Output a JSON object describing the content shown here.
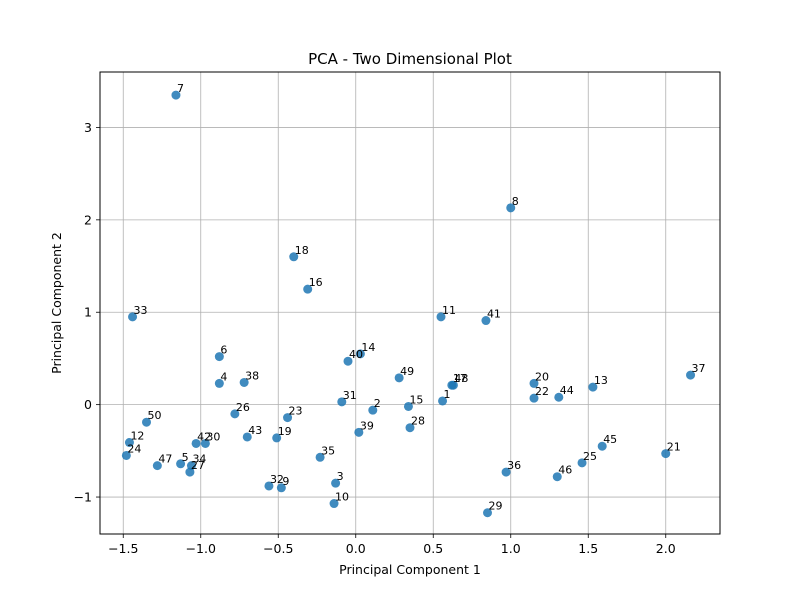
{
  "chart_data": {
    "type": "scatter",
    "title": "PCA - Two Dimensional Plot",
    "xlabel": "Principal Component 1",
    "ylabel": "Principal Component 2",
    "xlim": [
      -1.65,
      2.35
    ],
    "ylim": [
      -1.4,
      3.6
    ],
    "xticks": [
      -1.5,
      -1.0,
      -0.5,
      0.0,
      0.5,
      1.0,
      1.5,
      2.0
    ],
    "xtick_labels": [
      "−1.5",
      "−1.0",
      "−0.5",
      "0.0",
      "0.5",
      "1.0",
      "1.5",
      "2.0"
    ],
    "yticks": [
      -1,
      0,
      1,
      2,
      3
    ],
    "ytick_labels": [
      "−1",
      "0",
      "1",
      "2",
      "3"
    ],
    "grid": true,
    "marker_color": "#1f77b4",
    "points": [
      {
        "label": "1",
        "x": 0.56,
        "y": 0.04
      },
      {
        "label": "2",
        "x": 0.11,
        "y": -0.06
      },
      {
        "label": "3",
        "x": -0.13,
        "y": -0.85
      },
      {
        "label": "4",
        "x": -0.88,
        "y": 0.23
      },
      {
        "label": "5",
        "x": -1.13,
        "y": -0.64
      },
      {
        "label": "6",
        "x": -0.88,
        "y": 0.52
      },
      {
        "label": "7",
        "x": -1.16,
        "y": 3.35
      },
      {
        "label": "8",
        "x": 1.0,
        "y": 2.13
      },
      {
        "label": "9",
        "x": -0.48,
        "y": -0.9
      },
      {
        "label": "10",
        "x": -0.14,
        "y": -1.07
      },
      {
        "label": "11",
        "x": 0.55,
        "y": 0.95
      },
      {
        "label": "12",
        "x": -1.46,
        "y": -0.41
      },
      {
        "label": "13",
        "x": 1.53,
        "y": 0.19
      },
      {
        "label": "14",
        "x": 0.03,
        "y": 0.55
      },
      {
        "label": "15",
        "x": 0.34,
        "y": -0.02
      },
      {
        "label": "16",
        "x": -0.31,
        "y": 1.25
      },
      {
        "label": "17",
        "x": 0.62,
        "y": 0.21
      },
      {
        "label": "18",
        "x": -0.4,
        "y": 1.6
      },
      {
        "label": "19",
        "x": -0.51,
        "y": -0.36
      },
      {
        "label": "20",
        "x": 1.15,
        "y": 0.23
      },
      {
        "label": "21",
        "x": 2.0,
        "y": -0.53
      },
      {
        "label": "22",
        "x": 1.15,
        "y": 0.07
      },
      {
        "label": "23",
        "x": -0.44,
        "y": -0.14
      },
      {
        "label": "24",
        "x": -1.48,
        "y": -0.55
      },
      {
        "label": "25",
        "x": 1.46,
        "y": -0.63
      },
      {
        "label": "26",
        "x": -0.78,
        "y": -0.1
      },
      {
        "label": "27",
        "x": -1.07,
        "y": -0.73
      },
      {
        "label": "28",
        "x": 0.35,
        "y": -0.25
      },
      {
        "label": "29",
        "x": 0.85,
        "y": -1.17
      },
      {
        "label": "30",
        "x": -0.97,
        "y": -0.42
      },
      {
        "label": "31",
        "x": -0.09,
        "y": 0.03
      },
      {
        "label": "32",
        "x": -0.56,
        "y": -0.88
      },
      {
        "label": "33",
        "x": -1.44,
        "y": 0.95
      },
      {
        "label": "34",
        "x": -1.06,
        "y": -0.66
      },
      {
        "label": "35",
        "x": -0.23,
        "y": -0.57
      },
      {
        "label": "36",
        "x": 0.97,
        "y": -0.73
      },
      {
        "label": "37",
        "x": 2.16,
        "y": 0.32
      },
      {
        "label": "38",
        "x": -0.72,
        "y": 0.24
      },
      {
        "label": "39",
        "x": 0.02,
        "y": -0.3
      },
      {
        "label": "40",
        "x": -0.05,
        "y": 0.47
      },
      {
        "label": "41",
        "x": 0.84,
        "y": 0.91
      },
      {
        "label": "42",
        "x": -1.03,
        "y": -0.42
      },
      {
        "label": "43",
        "x": -0.7,
        "y": -0.35
      },
      {
        "label": "44",
        "x": 1.31,
        "y": 0.08
      },
      {
        "label": "45",
        "x": 1.59,
        "y": -0.45
      },
      {
        "label": "46",
        "x": 1.3,
        "y": -0.78
      },
      {
        "label": "47",
        "x": -1.28,
        "y": -0.66
      },
      {
        "label": "48",
        "x": 0.63,
        "y": 0.21
      },
      {
        "label": "49",
        "x": 0.28,
        "y": 0.29
      },
      {
        "label": "50",
        "x": -1.35,
        "y": -0.19
      }
    ]
  }
}
